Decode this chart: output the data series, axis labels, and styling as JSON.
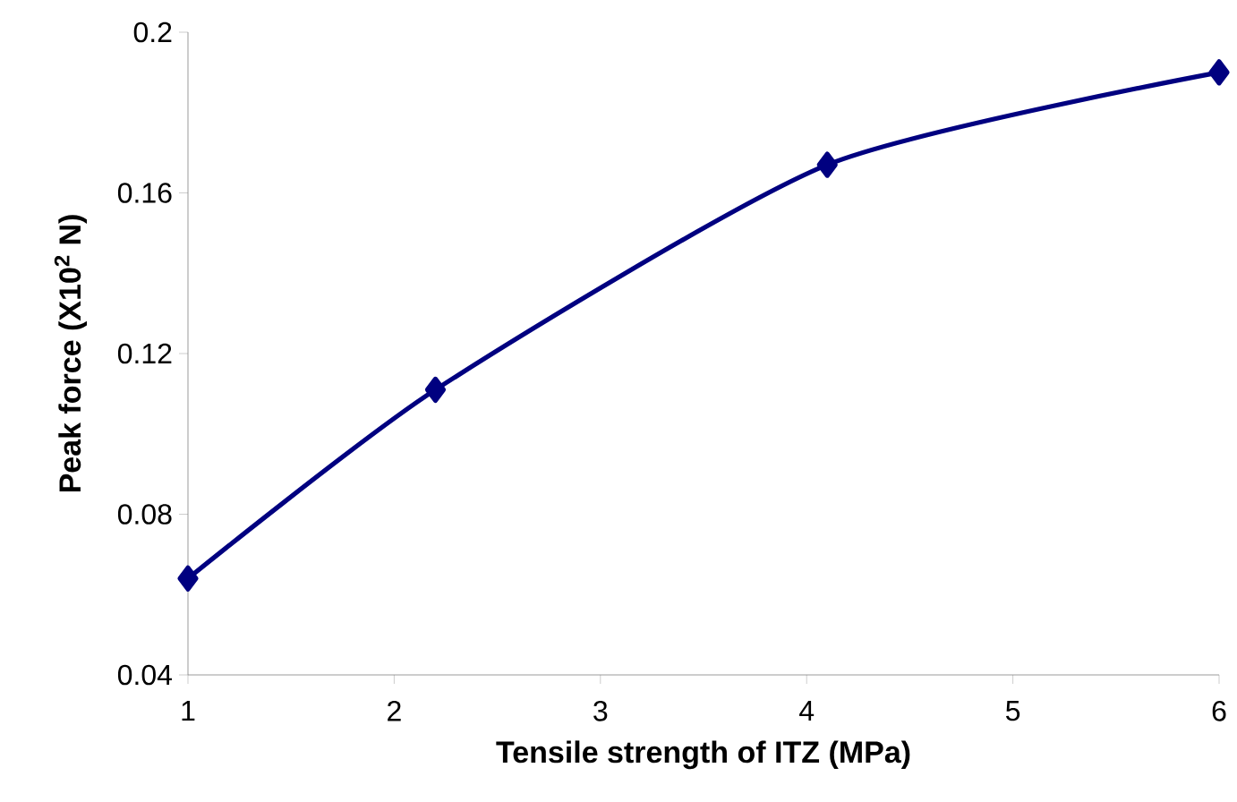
{
  "chart_data": {
    "type": "line",
    "xlabel": "Tensile strength of ITZ (MPa)",
    "ylabel": "Peak force (X10$^{2}$ N)",
    "x": [
      1,
      2.2,
      4.1,
      6
    ],
    "series": [
      {
        "color": "#000080",
        "values": [
          0.064,
          0.111,
          0.167,
          0.19
        ]
      }
    ],
    "xlim": [
      1,
      6
    ],
    "xticks": [
      1,
      2,
      3,
      4,
      5,
      6
    ],
    "ylim": [
      0.04,
      0.2
    ],
    "yticks": [
      0.04,
      0.08,
      0.12,
      0.16,
      0.2
    ],
    "marker": "diamond",
    "line_style": "solid"
  }
}
